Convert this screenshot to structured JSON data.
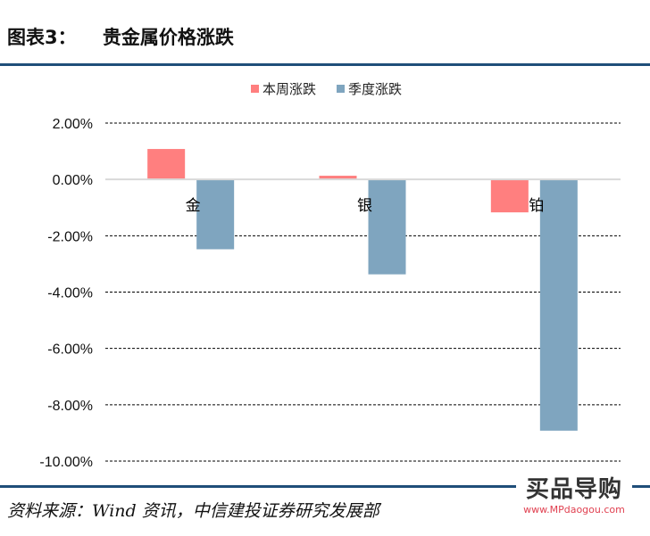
{
  "header": {
    "title": "图表3：    贵金属价格涨跌"
  },
  "footer": {
    "source": "资料来源：Wind 资讯，中信建投证券研究发展部",
    "logo_text": "买品导购",
    "logo_url": "www.MPdaogou.com"
  },
  "chart_data": {
    "type": "bar",
    "categories": [
      "金",
      "银",
      "铂"
    ],
    "series": [
      {
        "name": "本周涨跌",
        "color": "#ff7f7f",
        "values": [
          1.08,
          0.13,
          -1.17
        ]
      },
      {
        "name": "季度涨跌",
        "color": "#7fa5bf",
        "values": [
          -2.48,
          -3.37,
          -8.92
        ]
      }
    ],
    "ylim": [
      -10,
      2
    ],
    "yticks": [
      "2.00%",
      "0.00%",
      "-2.00%",
      "-4.00%",
      "-6.00%",
      "-8.00%",
      "-10.00%"
    ],
    "ytick_values": [
      2,
      0,
      -2,
      -4,
      -6,
      -8,
      -10
    ],
    "grid": true,
    "legend": "top"
  }
}
